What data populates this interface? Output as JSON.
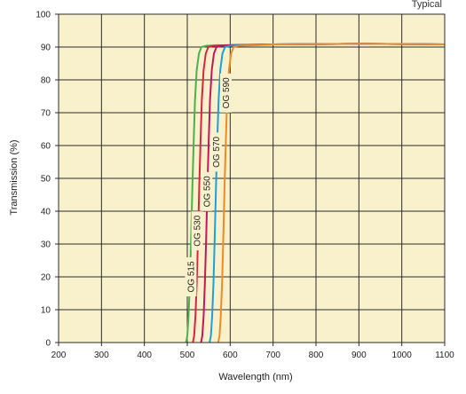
{
  "chart_data": {
    "type": "line",
    "corner_note": "Typical",
    "xlabel": "Wavelength (nm)",
    "ylabel": "Transmission (%)",
    "xlim": [
      200,
      1100
    ],
    "ylim": [
      0,
      100
    ],
    "x_ticks": [
      200,
      300,
      400,
      500,
      600,
      700,
      800,
      900,
      1000,
      1100
    ],
    "y_ticks": [
      0,
      10,
      20,
      30,
      40,
      50,
      60,
      70,
      80,
      90,
      100
    ],
    "grid": true,
    "plot_background": "#f8f1cc",
    "grid_color": "#2b2b2b",
    "series": [
      {
        "name": "OG 515",
        "color": "#4caf50",
        "label_at": {
          "x": 508,
          "y": 20
        },
        "points": [
          [
            497,
            0
          ],
          [
            500,
            2
          ],
          [
            503,
            8
          ],
          [
            506,
            18
          ],
          [
            509,
            32
          ],
          [
            512,
            48
          ],
          [
            515,
            62
          ],
          [
            518,
            74
          ],
          [
            522,
            83
          ],
          [
            527,
            88
          ],
          [
            533,
            90
          ],
          [
            545,
            90.4
          ],
          [
            600,
            90.6
          ],
          [
            700,
            90.8
          ],
          [
            900,
            91.0
          ],
          [
            1100,
            90.8
          ]
        ]
      },
      {
        "name": "OG 530",
        "color": "#d7263d",
        "label_at": {
          "x": 523,
          "y": 34
        },
        "points": [
          [
            513,
            0
          ],
          [
            516,
            2
          ],
          [
            519,
            8
          ],
          [
            522,
            18
          ],
          [
            525,
            32
          ],
          [
            528,
            48
          ],
          [
            531,
            62
          ],
          [
            534,
            74
          ],
          [
            538,
            83
          ],
          [
            543,
            88
          ],
          [
            549,
            90
          ],
          [
            560,
            90.4
          ],
          [
            610,
            90.6
          ],
          [
            700,
            90.8
          ],
          [
            900,
            91.0
          ],
          [
            1100,
            90.8
          ]
        ]
      },
      {
        "name": "OG 550",
        "color": "#c2185b",
        "label_at": {
          "x": 545,
          "y": 46
        },
        "points": [
          [
            532,
            0
          ],
          [
            535,
            2
          ],
          [
            538,
            8
          ],
          [
            541,
            18
          ],
          [
            544,
            32
          ],
          [
            547,
            48
          ],
          [
            550,
            62
          ],
          [
            553,
            74
          ],
          [
            557,
            83
          ],
          [
            562,
            88
          ],
          [
            568,
            90
          ],
          [
            580,
            90.4
          ],
          [
            630,
            90.6
          ],
          [
            700,
            90.8
          ],
          [
            900,
            91.0
          ],
          [
            1100,
            90.8
          ]
        ]
      },
      {
        "name": "OG 570",
        "color": "#1e9fd8",
        "label_at": {
          "x": 567,
          "y": 58
        },
        "points": [
          [
            552,
            0
          ],
          [
            555,
            2
          ],
          [
            558,
            8
          ],
          [
            561,
            18
          ],
          [
            564,
            32
          ],
          [
            567,
            48
          ],
          [
            570,
            62
          ],
          [
            573,
            74
          ],
          [
            577,
            83
          ],
          [
            582,
            88
          ],
          [
            588,
            90
          ],
          [
            600,
            90.4
          ],
          [
            650,
            90.6
          ],
          [
            700,
            90.8
          ],
          [
            900,
            91.0
          ],
          [
            1100,
            90.8
          ]
        ]
      },
      {
        "name": "OG 590",
        "color": "#f08a24",
        "label_at": {
          "x": 590,
          "y": 76
        },
        "points": [
          [
            572,
            0
          ],
          [
            575,
            2
          ],
          [
            578,
            8
          ],
          [
            581,
            18
          ],
          [
            584,
            32
          ],
          [
            587,
            48
          ],
          [
            590,
            62
          ],
          [
            593,
            74
          ],
          [
            597,
            83
          ],
          [
            602,
            88
          ],
          [
            608,
            90
          ],
          [
            620,
            90.4
          ],
          [
            670,
            90.6
          ],
          [
            700,
            90.8
          ],
          [
            900,
            91.0
          ],
          [
            1100,
            90.8
          ]
        ]
      }
    ]
  }
}
